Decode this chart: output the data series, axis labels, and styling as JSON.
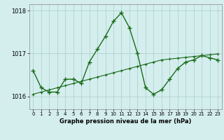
{
  "hours": [
    0,
    1,
    2,
    3,
    4,
    5,
    6,
    7,
    8,
    9,
    10,
    11,
    12,
    13,
    14,
    15,
    16,
    17,
    18,
    19,
    20,
    21,
    22,
    23
  ],
  "pressure1": [
    1016.6,
    1016.2,
    1016.1,
    1016.1,
    1016.4,
    1016.4,
    1016.3,
    1016.8,
    1017.1,
    1017.4,
    1017.75,
    1017.95,
    1017.6,
    1017.0,
    1016.2,
    1016.05,
    1016.15,
    1016.4,
    1016.65,
    1016.8,
    1016.85,
    1016.95,
    1016.9,
    1016.85
  ],
  "pressure2": [
    1016.05,
    1016.1,
    1016.15,
    1016.2,
    1016.25,
    1016.3,
    1016.35,
    1016.4,
    1016.45,
    1016.5,
    1016.55,
    1016.6,
    1016.65,
    1016.7,
    1016.75,
    1016.8,
    1016.85,
    1016.87,
    1016.89,
    1016.91,
    1016.93,
    1016.95,
    1016.97,
    1016.99
  ],
  "line_color": "#1a6b1a",
  "background_color": "#d4eeee",
  "grid_color": "#aacccc",
  "axis_label": "Graphe pression niveau de la mer (hPa)",
  "ylim": [
    1015.7,
    1018.15
  ],
  "yticks": [
    1016,
    1017,
    1018
  ],
  "xlim": [
    -0.5,
    23.5
  ]
}
